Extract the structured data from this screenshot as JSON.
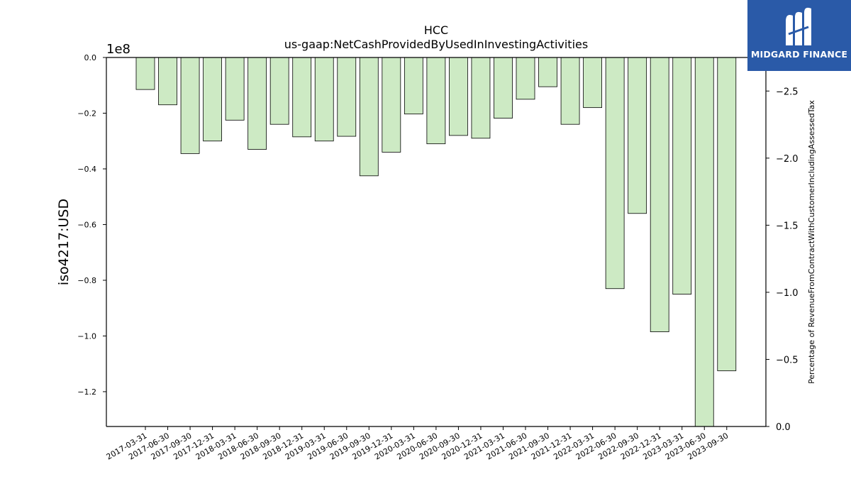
{
  "chart_data": {
    "type": "bar",
    "title": "HCC",
    "subtitle": "us-gaap:NetCashProvidedByUsedInInvestingActivities",
    "ylabel": "iso4217:USD",
    "y2label": "Percentage of RevenueFromContractWithCustomerIncludingAssessedTax",
    "y_offset_label": "1e8",
    "y_scale": 100000000,
    "ylim": [
      -1.325,
      0.0
    ],
    "yticks": [
      0.0,
      -0.2,
      -0.4,
      -0.6,
      -0.8,
      -1.0,
      -1.2
    ],
    "ytick_labels": [
      "0.0",
      "−0.2",
      "−0.4",
      "−0.6",
      "−0.8",
      "−1.0",
      "−1.2"
    ],
    "y2lim": [
      0.0,
      -2.75
    ],
    "y2ticks": [
      -2.5,
      -2.0,
      -1.5,
      -1.0,
      -0.5,
      0.0
    ],
    "y2tick_labels": [
      "−2.5",
      "−2.0",
      "−1.5",
      "−1.0",
      "−0.5",
      "0.0"
    ],
    "categories": [
      "2017-03-31",
      "2017-06-30",
      "2017-09-30",
      "2017-12-31",
      "2018-03-31",
      "2018-06-30",
      "2018-09-30",
      "2018-12-31",
      "2019-03-31",
      "2019-06-30",
      "2019-09-30",
      "2019-12-31",
      "2020-03-31",
      "2020-06-30",
      "2020-09-30",
      "2020-12-31",
      "2021-03-31",
      "2021-06-30",
      "2021-09-30",
      "2021-12-31",
      "2022-03-31",
      "2022-06-30",
      "2022-09-30",
      "2022-12-31",
      "2023-03-31",
      "2023-06-30",
      "2023-09-30"
    ],
    "values": [
      -0.115,
      -0.17,
      -0.345,
      -0.3,
      -0.225,
      -0.33,
      -0.24,
      -0.285,
      -0.3,
      -0.283,
      -0.425,
      -0.34,
      -0.203,
      -0.31,
      -0.28,
      -0.29,
      -0.218,
      -0.15,
      -0.105,
      -0.24,
      -0.18,
      -0.83,
      -0.56,
      -0.985,
      -0.85,
      -1.325,
      -1.125
    ],
    "bar_color": "#cdeac4",
    "bar_edge_color": "#000000",
    "grid": false
  },
  "logo": {
    "text": "MIDGARD FINANCE",
    "background": "#2a5aa8"
  }
}
